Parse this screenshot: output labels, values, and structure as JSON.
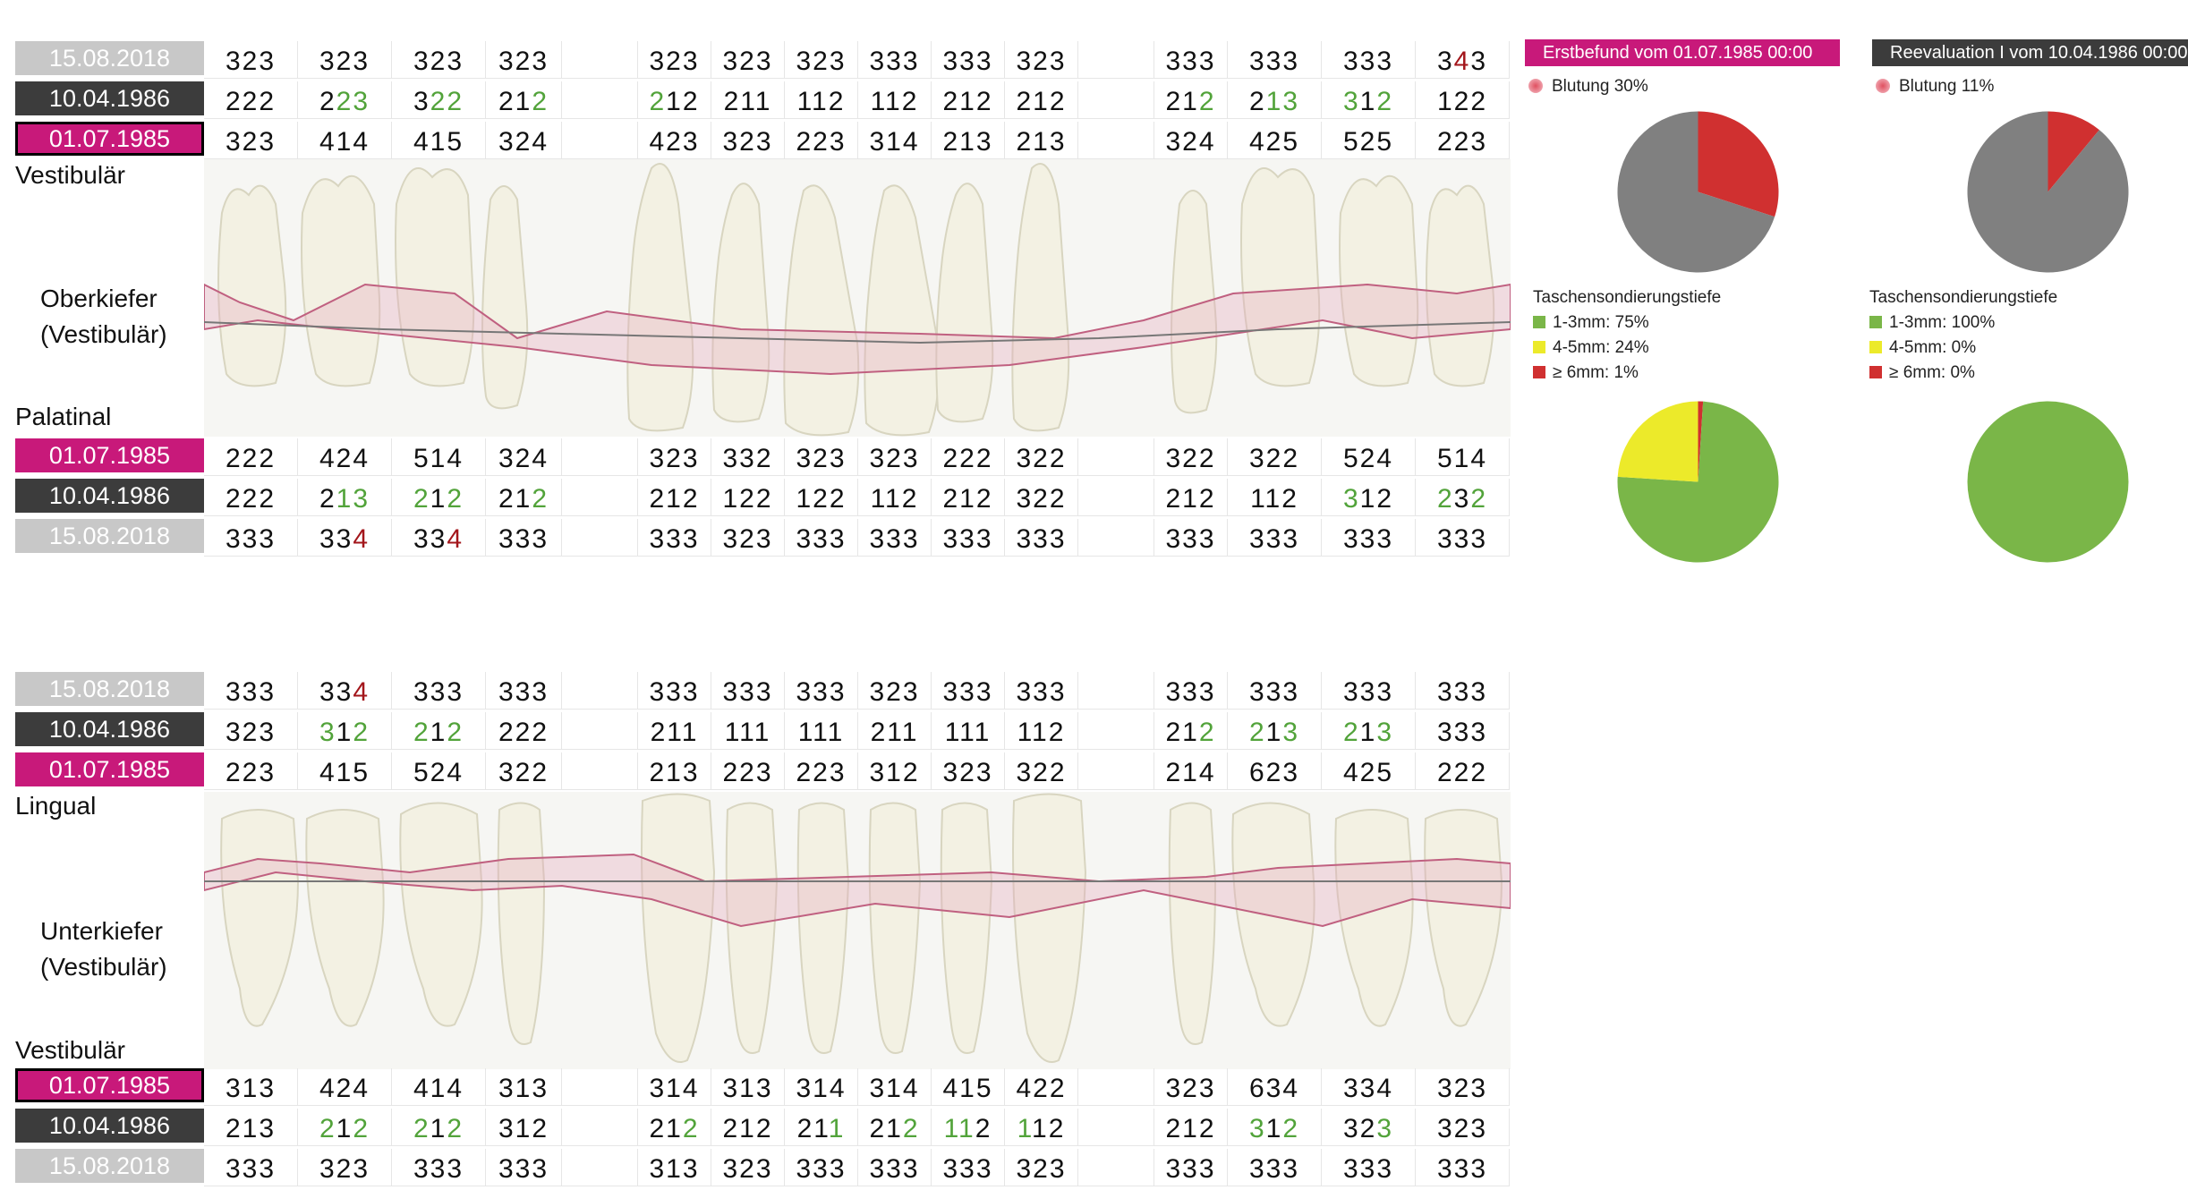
{
  "dates": {
    "d2018": "15.08.2018",
    "d1986": "10.04.1986",
    "d1985": "01.07.1985"
  },
  "labels": {
    "upper_top": "Vestibulär",
    "upper_jaw1": "Oberkiefer",
    "upper_jaw2": "(Vestibulär)",
    "upper_bottom": "Palatinal",
    "lower_top": "Lingual",
    "lower_jaw1": "Unterkiefer",
    "lower_jaw2": "(Vestibulär)",
    "lower_bottom": "Vestibulär"
  },
  "tables": {
    "upper_vestibular": [
      {
        "date": "d2018",
        "cells": [
          "323",
          "323",
          "323",
          "323",
          "",
          "323",
          "323",
          "323",
          "333",
          "333",
          "323",
          "",
          "333",
          "333",
          "333",
          "343"
        ]
      },
      {
        "date": "d1986",
        "cells": [
          "222",
          "223",
          "322",
          "212",
          "",
          "212",
          "211",
          "112",
          "112",
          "212",
          "212",
          "",
          "212",
          "213",
          "312",
          "122"
        ]
      },
      {
        "date": "d1985",
        "cells": [
          "323",
          "414",
          "415",
          "324",
          "",
          "423",
          "323",
          "223",
          "314",
          "213",
          "213",
          "",
          "324",
          "425",
          "525",
          "223"
        ]
      }
    ],
    "upper_palatinal": [
      {
        "date": "d1985",
        "cells": [
          "222",
          "424",
          "514",
          "324",
          "",
          "323",
          "332",
          "323",
          "323",
          "222",
          "322",
          "",
          "322",
          "322",
          "524",
          "514"
        ]
      },
      {
        "date": "d1986",
        "cells": [
          "222",
          "213",
          "212",
          "212",
          "",
          "212",
          "122",
          "122",
          "112",
          "212",
          "322",
          "",
          "212",
          "112",
          "312",
          "232"
        ]
      },
      {
        "date": "d2018",
        "cells": [
          "333",
          "334",
          "334",
          "333",
          "",
          "333",
          "323",
          "333",
          "333",
          "333",
          "333",
          "",
          "333",
          "333",
          "333",
          "333"
        ]
      }
    ],
    "lower_lingual": [
      {
        "date": "d2018",
        "cells": [
          "333",
          "334",
          "333",
          "333",
          "",
          "333",
          "333",
          "333",
          "323",
          "333",
          "333",
          "",
          "333",
          "333",
          "333",
          "333"
        ]
      },
      {
        "date": "d1986",
        "cells": [
          "323",
          "312",
          "212",
          "222",
          "",
          "211",
          "111",
          "111",
          "211",
          "111",
          "112",
          "",
          "212",
          "213",
          "213",
          "333"
        ]
      },
      {
        "date": "d1985",
        "cells": [
          "223",
          "415",
          "524",
          "322",
          "",
          "213",
          "223",
          "223",
          "312",
          "323",
          "322",
          "",
          "214",
          "623",
          "425",
          "222"
        ]
      }
    ],
    "lower_vestibular": [
      {
        "date": "d1985",
        "cells": [
          "313",
          "424",
          "414",
          "313",
          "",
          "314",
          "313",
          "314",
          "314",
          "415",
          "422",
          "",
          "323",
          "634",
          "334",
          "323"
        ]
      },
      {
        "date": "d1986",
        "cells": [
          "213",
          "212",
          "212",
          "312",
          "",
          "212",
          "212",
          "211",
          "212",
          "112",
          "112",
          "",
          "212",
          "312",
          "323",
          "323"
        ]
      },
      {
        "date": "d2018",
        "cells": [
          "333",
          "323",
          "333",
          "333",
          "",
          "313",
          "323",
          "333",
          "333",
          "333",
          "323",
          "",
          "333",
          "333",
          "333",
          "333"
        ]
      }
    ]
  },
  "highlights": {
    "upper_vestibular": {
      "0": {
        "15": "r1"
      },
      "1": {
        "1": "g12",
        "2": "g12",
        "3": "g2",
        "5": "g0",
        "9": "",
        "12": "g2",
        "13": "g12",
        "14": "g02",
        "15": ""
      }
    },
    "upper_palatinal": {
      "1": {
        "1": "g12",
        "2": "g02",
        "3": "g2",
        "14": "g0",
        "15": "g02"
      },
      "2": {
        "1": "r2",
        "2": "r2"
      }
    },
    "lower_lingual": {
      "0": {
        "1": "r2"
      },
      "1": {
        "1": "g02",
        "2": "g02",
        "12": "g2",
        "13": "g02",
        "14": "g02"
      }
    },
    "lower_vestibular": {
      "1": {
        "1": "g02",
        "2": "g02",
        "5": "g2",
        "7": "g2",
        "8": "g2",
        "9": "g01",
        "10": "g0",
        "13": "g02",
        "14": "g2"
      }
    }
  },
  "pies": {
    "first_title": "Erstbefund vom 01.07.1985 00:00",
    "second_title": "Reevaluation I vom 10.04.1986 00:00",
    "bleeding_first": "Blutung 30%",
    "bleeding_second": "Blutung 11%",
    "bleeding_first_value": 30,
    "bleeding_second_value": 11,
    "depth_title": "Taschensondierungstiefe",
    "first_legend": [
      "1-3mm: 75%",
      "4-5mm: 24%",
      "≥ 6mm: 1%"
    ],
    "second_legend": [
      "1-3mm: 100%",
      "4-5mm: 0%",
      "≥ 6mm: 0%"
    ],
    "first_values": [
      75,
      24,
      1
    ],
    "second_values": [
      100,
      0,
      0
    ],
    "colors": {
      "green": "#7ab648",
      "yellow": "#ecea2a",
      "red": "#d03030",
      "grey": "#808080",
      "magenta": "#c8197a",
      "dark": "#3c3c3c"
    }
  }
}
